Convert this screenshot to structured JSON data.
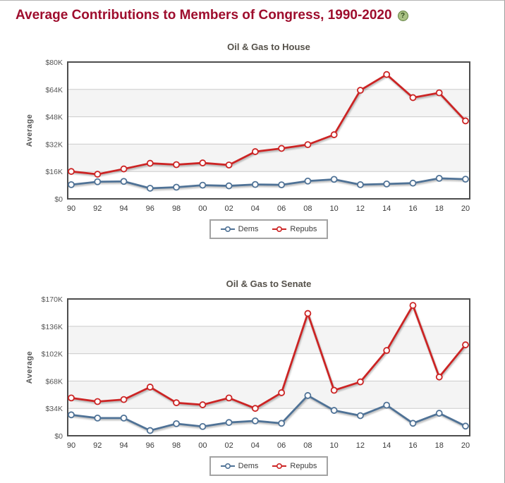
{
  "page": {
    "title": "Average Contributions to Members of Congress, 1990-2020",
    "title_color": "#9e0d2d",
    "help_glyph": "?"
  },
  "colors": {
    "dems": "#4f7296",
    "repubs": "#cc2424",
    "band_gray": "#f4f4f4",
    "grid_line": "#cccccc",
    "plot_border": "#4d4d4d",
    "axis_text": "#555555"
  },
  "chart_data": [
    {
      "type": "line",
      "title": "Oil & Gas to House",
      "ylabel": "Average",
      "ylim": [
        0,
        80000
      ],
      "yticks": [
        "$0",
        "$16K",
        "$32K",
        "$48K",
        "$64K",
        "$80K"
      ],
      "grid": true,
      "legend_position": "bottom",
      "categories": [
        "90",
        "92",
        "94",
        "96",
        "98",
        "00",
        "02",
        "04",
        "06",
        "08",
        "10",
        "12",
        "14",
        "16",
        "18",
        "20"
      ],
      "series": [
        {
          "name": "Dems",
          "color": "#4f7296",
          "values": [
            8300,
            10000,
            10200,
            6200,
            6800,
            8000,
            7600,
            8400,
            8200,
            10400,
            11400,
            8300,
            8700,
            9200,
            12000,
            11500
          ]
        },
        {
          "name": "Repubs",
          "color": "#cc2424",
          "values": [
            16000,
            14400,
            17500,
            20800,
            20000,
            21000,
            19800,
            27600,
            29500,
            31700,
            37500,
            63500,
            72700,
            59200,
            62000,
            45600
          ]
        }
      ]
    },
    {
      "type": "line",
      "title": "Oil & Gas to Senate",
      "ylabel": "Average",
      "ylim": [
        0,
        170000
      ],
      "yticks": [
        "$0",
        "$34K",
        "$68K",
        "$102K",
        "$136K",
        "$170K"
      ],
      "grid": true,
      "legend_position": "bottom",
      "categories": [
        "90",
        "92",
        "94",
        "96",
        "98",
        "00",
        "02",
        "04",
        "06",
        "08",
        "10",
        "12",
        "14",
        "16",
        "18",
        "20"
      ],
      "series": [
        {
          "name": "Dems",
          "color": "#4f7296",
          "values": [
            26000,
            22000,
            22000,
            6500,
            15000,
            11500,
            16500,
            18500,
            15500,
            50000,
            31500,
            25000,
            38000,
            15500,
            28000,
            12000
          ]
        },
        {
          "name": "Repubs",
          "color": "#cc2424",
          "values": [
            47000,
            42500,
            45000,
            60500,
            41000,
            38500,
            47000,
            34000,
            53500,
            152000,
            56500,
            67000,
            106000,
            162000,
            73000,
            113000
          ]
        }
      ]
    }
  ]
}
